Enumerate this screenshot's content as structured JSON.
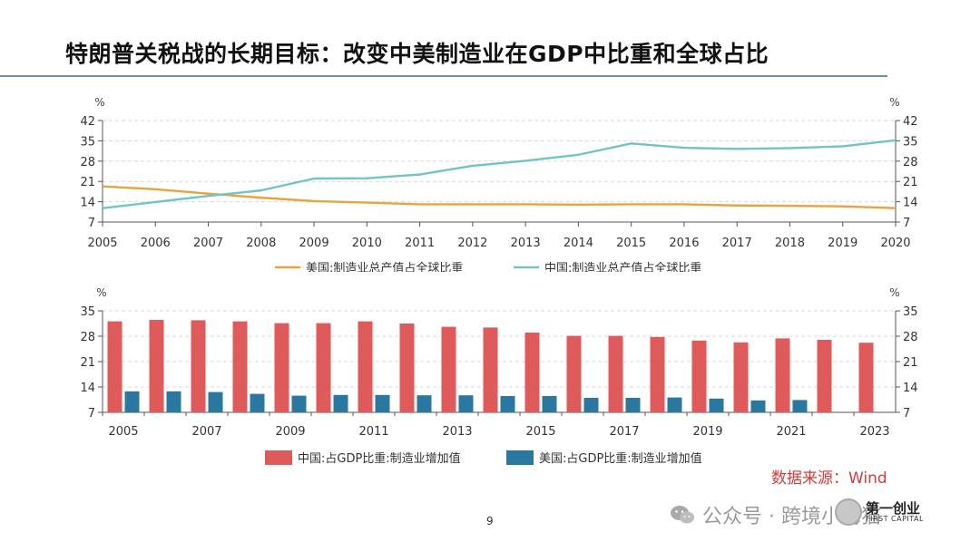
{
  "page": {
    "title": "特朗普关税战的长期目标：改变中美制造业在GDP中比重和全球占比",
    "source": "数据来源：Wind",
    "page_number": "9",
    "watermark": "公众号 · 跨境小梅猫",
    "brand_cn": "第一创业",
    "brand_en": "FIRST CAPITAL"
  },
  "colors": {
    "orange": "#e8a33c",
    "teal": "#72c3c3",
    "red": "#df5a5b",
    "blue": "#2a77a0",
    "grid": "#d9d9d9",
    "axis": "#555555",
    "rule": "#6a8fa7",
    "source_red": "#d33b3b"
  },
  "chart_data": [
    {
      "type": "line",
      "unit_left": "%",
      "unit_right": "%",
      "x": [
        2005,
        2006,
        2007,
        2008,
        2009,
        2010,
        2011,
        2012,
        2013,
        2014,
        2015,
        2016,
        2017,
        2018,
        2019,
        2020
      ],
      "x_tick_labels": [
        "2005",
        "2006",
        "2007",
        "2008",
        "2009",
        "2010",
        "2011",
        "2012",
        "2013",
        "2014",
        "2015",
        "2016",
        "2017",
        "2018",
        "2019",
        "2020"
      ],
      "ylim": [
        7,
        42
      ],
      "y_ticks": [
        7,
        14,
        21,
        28,
        35,
        42
      ],
      "y_tick_labels": [
        "7",
        "14",
        "21",
        "28",
        "35",
        "42"
      ],
      "grid": true,
      "legend_position": "bottom",
      "series": [
        {
          "name": "美国:制造业总产值占全球比重",
          "color": "#e8a33c",
          "values": [
            19.3,
            18.3,
            16.8,
            15.4,
            14.2,
            13.7,
            13.1,
            13.1,
            13.1,
            13.0,
            13.1,
            13.1,
            12.7,
            12.6,
            12.4,
            11.8
          ]
        },
        {
          "name": "中国:制造业总产值占全球比重",
          "color": "#72c3c3",
          "values": [
            11.8,
            13.9,
            16.0,
            17.9,
            22.0,
            22.1,
            23.4,
            26.4,
            28.1,
            30.2,
            34.1,
            32.6,
            32.2,
            32.5,
            33.1,
            35.2
          ]
        }
      ]
    },
    {
      "type": "bar",
      "unit_left": "%",
      "unit_right": "%",
      "categories": [
        "2005",
        "2006",
        "2007",
        "2008",
        "2009",
        "2010",
        "2011",
        "2012",
        "2013",
        "2014",
        "2015",
        "2016",
        "2017",
        "2018",
        "2019",
        "2020",
        "2021",
        "2022",
        "2023"
      ],
      "x_tick_labels": [
        "2005",
        "",
        "2007",
        "",
        "2009",
        "",
        "2011",
        "",
        "2013",
        "",
        "2015",
        "",
        "2017",
        "",
        "2019",
        "",
        "2021",
        "",
        "2023"
      ],
      "ylim": [
        7,
        35
      ],
      "y_ticks": [
        7,
        14,
        21,
        28,
        35
      ],
      "y_tick_labels": [
        "7",
        "14",
        "21",
        "28",
        "35"
      ],
      "grid": true,
      "legend_position": "bottom",
      "series": [
        {
          "name": "中国:占GDP比重:制造业增加值",
          "color": "#df5a5b",
          "values": [
            32.1,
            32.5,
            32.4,
            32.1,
            31.6,
            31.6,
            32.1,
            31.5,
            30.6,
            30.4,
            29.0,
            28.1,
            28.1,
            27.8,
            26.8,
            26.3,
            27.4,
            27.0,
            26.2
          ]
        },
        {
          "name": "美国:占GDP比重:制造业增加值",
          "color": "#2a77a0",
          "values": [
            12.8,
            12.8,
            12.6,
            12.1,
            11.6,
            11.8,
            11.8,
            11.7,
            11.7,
            11.5,
            11.5,
            11.0,
            11.0,
            11.1,
            10.8,
            10.3,
            10.4,
            null,
            null
          ]
        }
      ]
    }
  ]
}
